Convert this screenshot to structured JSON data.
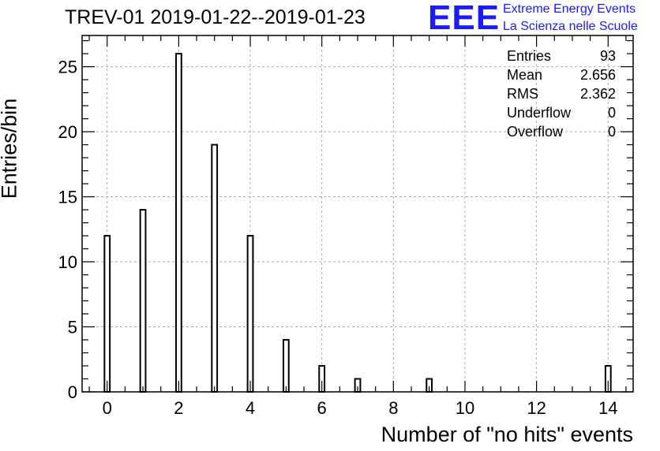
{
  "title": "TREV-01 2019-01-22--2019-01-23",
  "logo": {
    "mark": "EEE",
    "line1": "Extreme Energy Events",
    "line2": "La Scienza nelle Scuole",
    "color": "#1a1aff"
  },
  "stats": [
    {
      "label": "Entries",
      "value": "93"
    },
    {
      "label": "Mean",
      "value": "2.656"
    },
    {
      "label": "RMS",
      "value": "2.362"
    },
    {
      "label": "Underflow",
      "value": "0"
    },
    {
      "label": "Overflow",
      "value": "0"
    }
  ],
  "chart_data": {
    "type": "bar",
    "title": "TREV-01 2019-01-22--2019-01-23",
    "xlabel": "Number of \"no hits\" events",
    "ylabel": "Entries/bin",
    "xlim": [
      -0.7,
      14.7
    ],
    "ylim": [
      0,
      27.4
    ],
    "bin_width": 0.15,
    "x_ticks": [
      0,
      2,
      4,
      6,
      8,
      10,
      12,
      14
    ],
    "y_ticks": [
      0,
      5,
      10,
      15,
      20,
      25
    ],
    "grid": true,
    "legend": "none",
    "points": [
      {
        "x": 0,
        "y": 12
      },
      {
        "x": 1,
        "y": 14
      },
      {
        "x": 2,
        "y": 26
      },
      {
        "x": 3,
        "y": 19
      },
      {
        "x": 4,
        "y": 12
      },
      {
        "x": 5,
        "y": 4
      },
      {
        "x": 6,
        "y": 2
      },
      {
        "x": 7,
        "y": 1
      },
      {
        "x": 9,
        "y": 1
      },
      {
        "x": 14,
        "y": 2
      }
    ]
  }
}
